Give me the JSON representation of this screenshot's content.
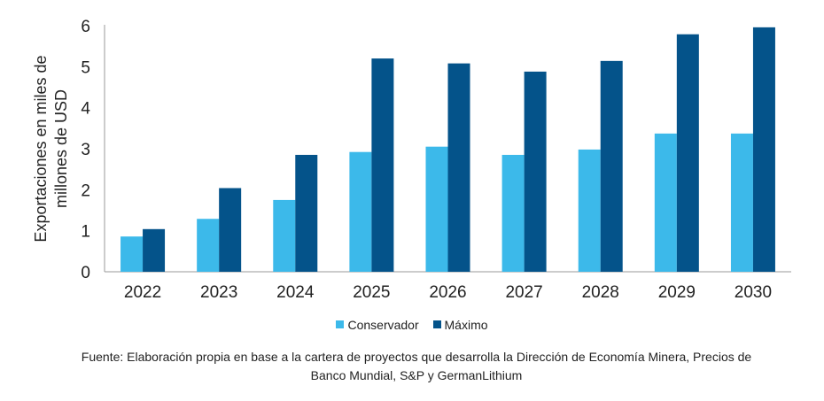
{
  "chart_data": {
    "type": "bar",
    "categories": [
      "2022",
      "2023",
      "2024",
      "2025",
      "2026",
      "2027",
      "2028",
      "2029",
      "2030"
    ],
    "series": [
      {
        "name": "Conservador",
        "color": "#3cb9ea",
        "values": [
          0.86,
          1.29,
          1.75,
          2.92,
          3.05,
          2.85,
          2.98,
          3.37,
          3.37
        ]
      },
      {
        "name": "Máximo",
        "color": "#04538a",
        "values": [
          1.04,
          2.04,
          2.85,
          5.2,
          5.08,
          4.88,
          5.14,
          5.79,
          5.96
        ]
      }
    ],
    "ylabel_lines": [
      "Exportaciones en miles de",
      "millones de USD"
    ],
    "ylim": [
      0,
      6
    ],
    "yticks": [
      "0",
      "1",
      "2",
      "3",
      "4",
      "5",
      "6"
    ],
    "grid": false,
    "legend_position": "bottom"
  },
  "source": {
    "line1": "Fuente: Elaboración propia en base a la cartera de proyectos que desarrolla la Dirección de Economía Minera, Precios de",
    "line2": "Banco Mundial, S&P y GermanLithium"
  }
}
